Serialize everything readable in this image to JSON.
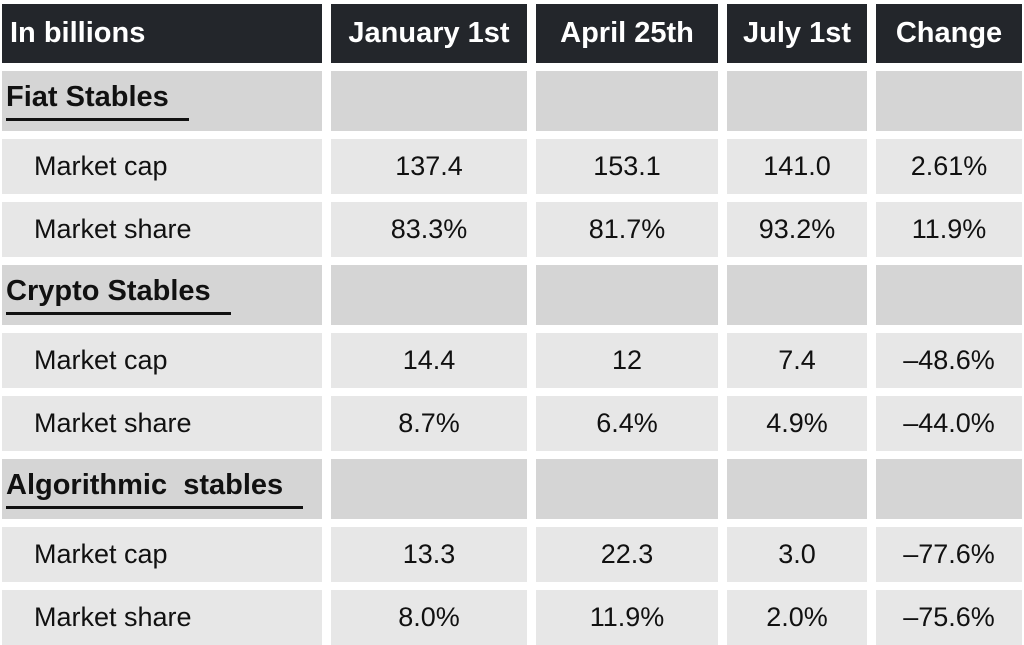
{
  "header": {
    "in_billions": "In billions",
    "jan": "January 1st",
    "apr": "April 25th",
    "jul": "July 1st",
    "change": "Change"
  },
  "sections": [
    {
      "title": "Fiat Stables",
      "rows": [
        {
          "label": "Market cap",
          "jan": "137.4",
          "apr": "153.1",
          "jul": "141.0",
          "change": "2.61%"
        },
        {
          "label": "Market share",
          "jan": "83.3%",
          "apr": "81.7%",
          "jul": "93.2%",
          "change": "11.9%"
        }
      ]
    },
    {
      "title": "Crypto Stables",
      "rows": [
        {
          "label": "Market cap",
          "jan": "14.4",
          "apr": "12",
          "jul": "7.4",
          "change": "–48.6%"
        },
        {
          "label": "Market share",
          "jan": "8.7%",
          "apr": "6.4%",
          "jul": "4.9%",
          "change": "–44.0%"
        }
      ]
    },
    {
      "title": "Algorithmic  stables",
      "rows": [
        {
          "label": "Market cap",
          "jan": "13.3",
          "apr": "22.3",
          "jul": "3.0",
          "change": "–77.6%"
        },
        {
          "label": "Market share",
          "jan": "8.0%",
          "apr": "11.9%",
          "jul": "2.0%",
          "change": "–75.6%"
        }
      ]
    }
  ],
  "colors": {
    "header_bg": "#23262b",
    "header_text": "#ffffff",
    "section_bg": "#d5d5d5",
    "data_row_bg": "#e7e7e7",
    "text": "#111111",
    "gap": "#ffffff"
  },
  "chart_data": {
    "type": "table",
    "title": "Stablecoin market caps and market shares (in billions)",
    "columns": [
      "In billions",
      "January 1st",
      "April 25th",
      "July 1st",
      "Change"
    ],
    "rows": [
      [
        "Fiat Stables",
        "",
        "",
        "",
        ""
      ],
      [
        "Market cap",
        "137.4",
        "153.1",
        "141.0",
        "2.61%"
      ],
      [
        "Market share",
        "83.3%",
        "81.7%",
        "93.2%",
        "11.9%"
      ],
      [
        "Crypto Stables",
        "",
        "",
        "",
        ""
      ],
      [
        "Market cap",
        "14.4",
        "12",
        "7.4",
        "–48.6%"
      ],
      [
        "Market share",
        "8.7%",
        "6.4%",
        "4.9%",
        "–44.0%"
      ],
      [
        "Algorithmic  stables",
        "",
        "",
        "",
        ""
      ],
      [
        "Market cap",
        "13.3",
        "22.3",
        "3.0",
        "–77.6%"
      ],
      [
        "Market share",
        "8.0%",
        "11.9%",
        "2.0%",
        "–75.6%"
      ]
    ]
  }
}
